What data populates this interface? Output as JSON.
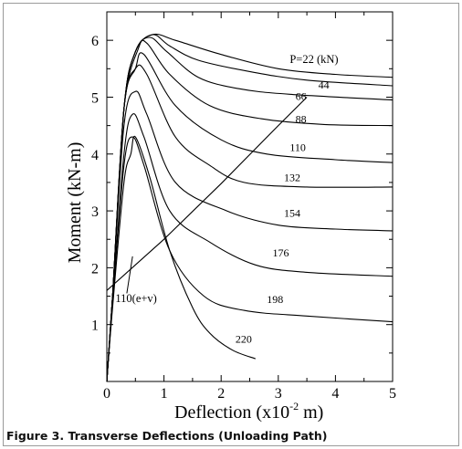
{
  "chart_data": {
    "type": "line",
    "title": "",
    "xlabel_main": "Deflection (x10",
    "xlabel_exp": "-2",
    "xlabel_unit": " m)",
    "ylabel": "Moment (kN-m)",
    "xlim": [
      0,
      5
    ],
    "ylim": [
      0,
      6.5
    ],
    "xticks": [
      0,
      1,
      2,
      3,
      4,
      5
    ],
    "yticks": [
      1,
      2,
      3,
      4,
      5,
      6
    ],
    "grid": false,
    "legend": "none",
    "series": [
      {
        "name": "P=22 (kN)",
        "points": [
          [
            0,
            0
          ],
          [
            0.1,
            1.5
          ],
          [
            0.3,
            4.8
          ],
          [
            0.5,
            5.8
          ],
          [
            0.8,
            6.1
          ],
          [
            1.2,
            6.0
          ],
          [
            2,
            5.75
          ],
          [
            3,
            5.5
          ],
          [
            4,
            5.4
          ],
          [
            5,
            5.35
          ]
        ]
      },
      {
        "name": "44",
        "points": [
          [
            0,
            0
          ],
          [
            0.1,
            1.5
          ],
          [
            0.3,
            4.8
          ],
          [
            0.5,
            5.8
          ],
          [
            0.8,
            6.1
          ],
          [
            1.1,
            5.9
          ],
          [
            1.6,
            5.65
          ],
          [
            2.5,
            5.45
          ],
          [
            3.5,
            5.3
          ],
          [
            5,
            5.2
          ]
        ]
      },
      {
        "name": "66",
        "points": [
          [
            0,
            0
          ],
          [
            0.1,
            1.5
          ],
          [
            0.3,
            4.8
          ],
          [
            0.5,
            5.8
          ],
          [
            0.75,
            6.05
          ],
          [
            1.05,
            5.8
          ],
          [
            1.6,
            5.35
          ],
          [
            2.3,
            5.15
          ],
          [
            3.2,
            5.05
          ],
          [
            5,
            4.95
          ]
        ]
      },
      {
        "name": "88",
        "points": [
          [
            0,
            0
          ],
          [
            0.1,
            1.5
          ],
          [
            0.3,
            4.8
          ],
          [
            0.55,
            5.85
          ],
          [
            0.7,
            5.95
          ],
          [
            1.1,
            5.4
          ],
          [
            1.8,
            4.85
          ],
          [
            2.7,
            4.62
          ],
          [
            3.8,
            4.52
          ],
          [
            5,
            4.5
          ]
        ]
      },
      {
        "name": "110",
        "points": [
          [
            0,
            0
          ],
          [
            0.1,
            1.5
          ],
          [
            0.3,
            4.8
          ],
          [
            0.5,
            5.5
          ],
          [
            0.65,
            5.75
          ],
          [
            1.2,
            4.85
          ],
          [
            2,
            4.25
          ],
          [
            2.8,
            4.0
          ],
          [
            4,
            3.9
          ],
          [
            5,
            3.85
          ]
        ]
      },
      {
        "name": "132",
        "points": [
          [
            0,
            0
          ],
          [
            0.1,
            1.5
          ],
          [
            0.3,
            4.8
          ],
          [
            0.5,
            5.5
          ],
          [
            0.7,
            5.4
          ],
          [
            1.2,
            4.3
          ],
          [
            1.8,
            3.8
          ],
          [
            2.4,
            3.5
          ],
          [
            3.5,
            3.42
          ],
          [
            5,
            3.42
          ]
        ]
      },
      {
        "name": "154",
        "points": [
          [
            0,
            0
          ],
          [
            0.1,
            1.5
          ],
          [
            0.3,
            4.5
          ],
          [
            0.5,
            5.1
          ],
          [
            0.7,
            4.7
          ],
          [
            1.2,
            3.5
          ],
          [
            2.1,
            3.0
          ],
          [
            3,
            2.75
          ],
          [
            4,
            2.68
          ],
          [
            5,
            2.65
          ]
        ]
      },
      {
        "name": "176",
        "points": [
          [
            0,
            0
          ],
          [
            0.1,
            1.4
          ],
          [
            0.3,
            4.0
          ],
          [
            0.45,
            4.7
          ],
          [
            0.65,
            4.3
          ],
          [
            1.1,
            3.0
          ],
          [
            1.8,
            2.45
          ],
          [
            2.6,
            2.05
          ],
          [
            3.5,
            1.92
          ],
          [
            5,
            1.85
          ]
        ]
      },
      {
        "name": "198",
        "points": [
          [
            0,
            0
          ],
          [
            0.1,
            1.4
          ],
          [
            0.3,
            3.8
          ],
          [
            0.45,
            4.3
          ],
          [
            0.65,
            3.8
          ],
          [
            1.1,
            2.3
          ],
          [
            1.7,
            1.5
          ],
          [
            2.4,
            1.25
          ],
          [
            3.5,
            1.15
          ],
          [
            5,
            1.05
          ]
        ]
      },
      {
        "name": "220",
        "points": [
          [
            0,
            0
          ],
          [
            0.1,
            1.3
          ],
          [
            0.3,
            3.5
          ],
          [
            0.42,
            4.0
          ],
          [
            0.5,
            4.3
          ],
          [
            0.75,
            3.6
          ],
          [
            1.1,
            2.3
          ],
          [
            1.5,
            1.3
          ],
          [
            1.8,
            0.85
          ],
          [
            2.2,
            0.55
          ],
          [
            2.6,
            0.4
          ]
        ]
      },
      {
        "name": "110(e+v)",
        "points": [
          [
            0,
            1.6
          ],
          [
            1,
            2.5
          ],
          [
            2,
            3.48
          ],
          [
            3,
            4.5
          ],
          [
            3.5,
            5.0
          ]
        ]
      }
    ],
    "curve_labels": [
      {
        "text": "P=22 (kN)",
        "x": 3.2,
        "y": 5.6
      },
      {
        "text": "44",
        "x": 3.7,
        "y": 5.15
      },
      {
        "text": "66",
        "x": 3.3,
        "y": 4.95
      },
      {
        "text": "88",
        "x": 3.3,
        "y": 4.55
      },
      {
        "text": "110",
        "x": 3.2,
        "y": 4.05
      },
      {
        "text": "132",
        "x": 3.1,
        "y": 3.52
      },
      {
        "text": "154",
        "x": 3.1,
        "y": 2.9
      },
      {
        "text": "176",
        "x": 2.9,
        "y": 2.2
      },
      {
        "text": "198",
        "x": 2.8,
        "y": 1.38
      },
      {
        "text": "220",
        "x": 2.25,
        "y": 0.68
      },
      {
        "text": "110(e+v)",
        "x": 0.15,
        "y": 1.4
      }
    ]
  },
  "caption": "Figure 3. Transverse Deflections (Unloading Path)"
}
